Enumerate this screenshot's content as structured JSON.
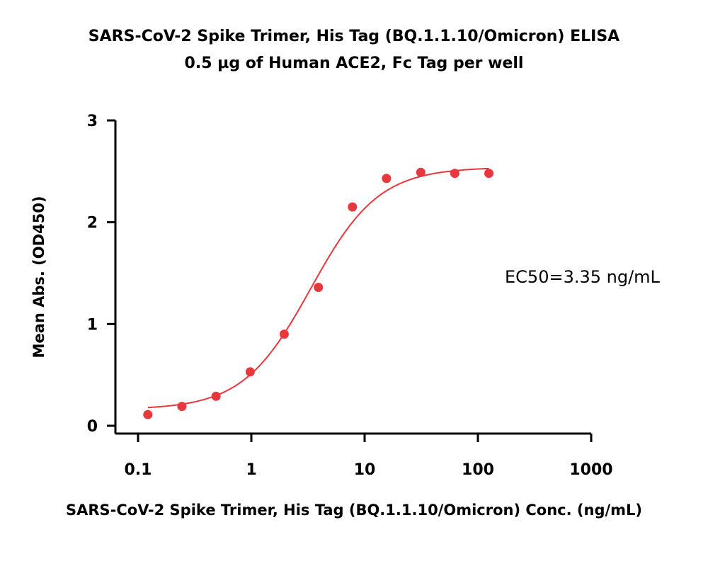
{
  "chart_data": {
    "type": "scatter",
    "title": "SARS-CoV-2 Spike Trimer, His Tag (BQ.1.1.10/Omicron) ELISA",
    "subtitle": "0.5 µg of Human ACE2, Fc Tag per well",
    "xlabel": "SARS-CoV-2 Spike Trimer, His Tag (BQ.1.1.10/Omicron) Conc. (ng/mL)",
    "ylabel": "Mean Abs. (OD450)",
    "x_scale": "log",
    "xlim": [
      0.1,
      1000
    ],
    "ylim": [
      0,
      3
    ],
    "x_ticks": [
      0.1,
      1,
      10,
      100,
      1000
    ],
    "x_tick_labels": [
      "0.1",
      "1",
      "10",
      "100",
      "1000"
    ],
    "y_ticks": [
      0,
      1,
      2,
      3
    ],
    "y_tick_labels": [
      "0",
      "1",
      "2",
      "3"
    ],
    "grid": false,
    "annotation": "EC50=3.35 ng/mL",
    "color": "#e8383d",
    "series": [
      {
        "points": {
          "x": [
            0.122,
            0.244,
            0.488,
            0.977,
            1.95,
            3.91,
            7.81,
            15.6,
            31.3,
            62.5,
            125
          ],
          "y": [
            0.11,
            0.19,
            0.29,
            0.53,
            0.9,
            1.36,
            2.15,
            2.43,
            2.49,
            2.48,
            2.48
          ]
        },
        "fit": {
          "model": "4PL",
          "bottom": 0.16,
          "top": 2.54,
          "ec50": 3.35,
          "hill": 1.45
        }
      }
    ]
  }
}
